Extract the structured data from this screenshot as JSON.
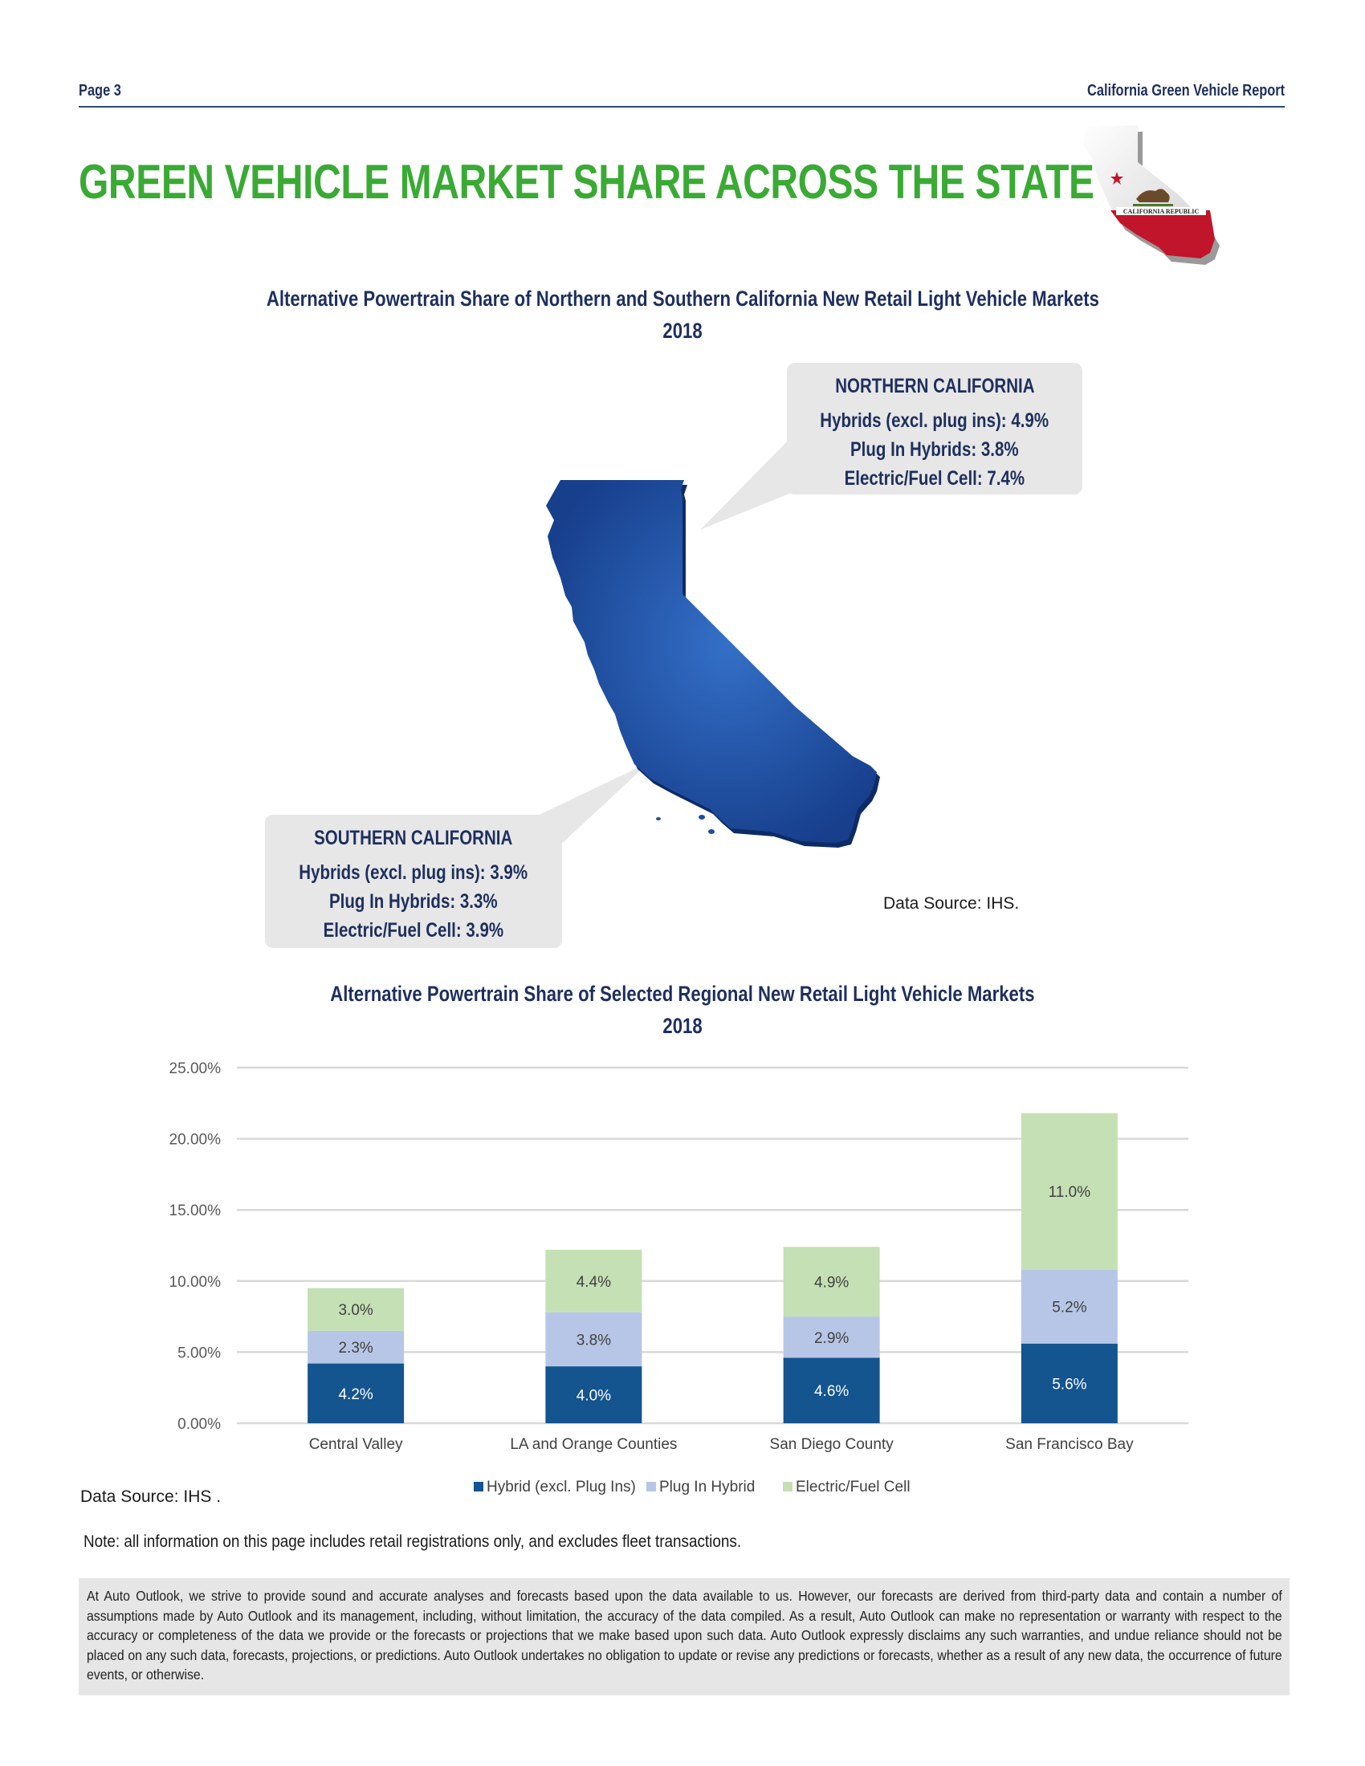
{
  "header": {
    "page_label": "Page 3",
    "report_title": "California Green Vehicle Report"
  },
  "main_heading": "GREEN VEHICLE MARKET SHARE ACROSS THE STATE",
  "flag_text": "CALIFORNIA REPUBLIC",
  "map_section": {
    "title_line1": "Alternative Powertrain Share of Northern and Southern California New Retail Light Vehicle Markets",
    "title_line2": "2018",
    "north": {
      "heading": "NORTHERN CALIFORNIA",
      "hybrids": "Hybrids (excl. plug ins): 4.9%",
      "plug_in": "Plug In Hybrids: 3.8%",
      "electric": "Electric/Fuel Cell: 7.4%"
    },
    "south": {
      "heading": "SOUTHERN CALIFORNIA",
      "hybrids": "Hybrids (excl. plug ins): 3.9%",
      "plug_in": "Plug In Hybrids: 3.3%",
      "electric": "Electric/Fuel Cell: 3.9%"
    },
    "source": "Data Source: IHS."
  },
  "chart_section": {
    "title_line1": "Alternative Powertrain Share of Selected Regional New Retail Light Vehicle Markets",
    "title_line2": "2018",
    "source": "Data Source: IHS ."
  },
  "chart_data": {
    "type": "bar",
    "stacked": true,
    "categories": [
      "Central Valley",
      "LA and Orange Counties",
      "San Diego County",
      "San Francisco Bay"
    ],
    "series": [
      {
        "name": "Hybrid (excl. Plug Ins)",
        "values": [
          4.2,
          4.0,
          4.6,
          5.6
        ],
        "labels": [
          "4.2%",
          "4.0%",
          "4.6%",
          "5.6%"
        ],
        "color": "#14548f"
      },
      {
        "name": "Plug In Hybrid",
        "values": [
          2.3,
          3.8,
          2.9,
          5.2
        ],
        "labels": [
          "2.3%",
          "3.8%",
          "2.9%",
          "5.2%"
        ],
        "color": "#b7c6e6"
      },
      {
        "name": "Electric/Fuel Cell",
        "values": [
          3.0,
          4.4,
          4.9,
          11.0
        ],
        "labels": [
          "3.0%",
          "4.4%",
          "4.9%",
          "11.0%"
        ],
        "color": "#c5e0b4"
      }
    ],
    "y_ticks": [
      "0.00%",
      "5.00%",
      "10.00%",
      "15.00%",
      "20.00%",
      "25.00%"
    ],
    "ylim": [
      0,
      25
    ],
    "grid": true,
    "legend": "bottom"
  },
  "note": "Note: all information on this page includes retail registrations only, and excludes fleet transactions.",
  "disclaimer": "At Auto Outlook, we strive to provide sound and accurate analyses and forecasts based upon the data available to us.  However, our forecasts are derived from third-party data and contain a number of assumptions made by Auto Outlook and its management, including, without limitation, the accuracy of the data compiled.  As a result, Auto Outlook can make no representation or warranty with respect to the accuracy or completeness of the data we provide or the forecasts or projections that we make based upon such data.  Auto Outlook expressly disclaims any such warranties, and undue reliance should not be placed on any such data, forecasts, projections, or predictions.  Auto Outlook undertakes no obligation to update or revise any predictions or forecasts, whether as a result of any new data, the occurrence of future events, or otherwise."
}
